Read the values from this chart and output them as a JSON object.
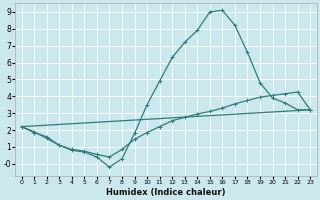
{
  "xlabel": "Humidex (Indice chaleur)",
  "background_color": "#cce8ef",
  "grid_color": "#ffffff",
  "line_color": "#2e7d78",
  "xlim": [
    -0.5,
    23.5
  ],
  "ylim": [
    -0.7,
    9.5
  ],
  "xticks": [
    0,
    1,
    2,
    3,
    4,
    5,
    6,
    7,
    8,
    9,
    10,
    11,
    12,
    13,
    14,
    15,
    16,
    17,
    18,
    19,
    20,
    21,
    22,
    23
  ],
  "ytick_labels": [
    "-0",
    "1",
    "2",
    "3",
    "4",
    "5",
    "6",
    "7",
    "8",
    "9"
  ],
  "ytick_vals": [
    0,
    1,
    2,
    3,
    4,
    5,
    6,
    7,
    8,
    9
  ],
  "series1_x": [
    0,
    1,
    2,
    3,
    4,
    5,
    6,
    7,
    8,
    9,
    10,
    11,
    12,
    13,
    14,
    15,
    16,
    17,
    18,
    19,
    20,
    21,
    22,
    23
  ],
  "series1_y": [
    2.2,
    1.9,
    1.5,
    1.1,
    0.8,
    0.7,
    0.4,
    -0.2,
    0.3,
    1.8,
    3.5,
    4.9,
    6.3,
    7.2,
    7.9,
    9.0,
    9.1,
    8.2,
    6.6,
    4.8,
    3.9,
    3.6,
    3.2,
    3.2
  ],
  "series2_x": [
    0,
    1,
    2,
    3,
    4,
    5,
    6,
    7,
    8,
    9,
    10,
    11,
    12,
    13,
    14,
    15,
    16,
    17,
    18,
    19,
    20,
    21,
    22,
    23
  ],
  "series2_y": [
    2.2,
    1.85,
    1.6,
    1.1,
    0.85,
    0.75,
    0.55,
    0.4,
    0.85,
    1.45,
    1.85,
    2.2,
    2.55,
    2.75,
    2.95,
    3.1,
    3.3,
    3.55,
    3.75,
    3.95,
    4.05,
    4.15,
    4.25,
    3.2
  ],
  "series3_x": [
    0,
    23
  ],
  "series3_y": [
    2.2,
    3.2
  ]
}
